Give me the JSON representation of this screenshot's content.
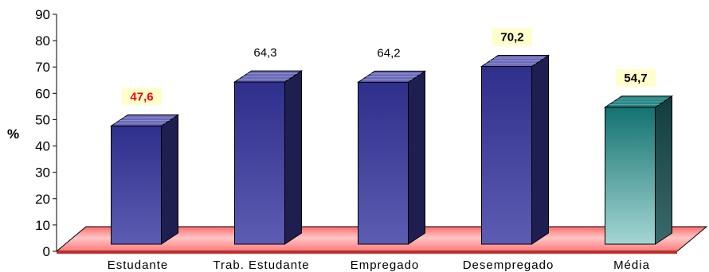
{
  "chart_data": {
    "type": "bar",
    "title": "",
    "xlabel": "",
    "ylabel": "%",
    "ylim": [
      0,
      90
    ],
    "yticks": [
      0,
      10,
      20,
      30,
      40,
      50,
      60,
      70,
      80,
      90
    ],
    "categories": [
      "Estudante",
      "Trab. Estudante",
      "Empregado",
      "Desempregado",
      "Média"
    ],
    "values": [
      47.6,
      64.3,
      64.2,
      70.2,
      54.7
    ],
    "data_labels": [
      "47,6",
      "64,3",
      "64,2",
      "70,2",
      "54,7"
    ],
    "grid": false,
    "legend": "none"
  },
  "colors": {
    "bar_front": "#3c3c9a",
    "bar_front_light": "#5a5ab0",
    "bar_side": "#1e1e50",
    "bar_top": "#6a6ab8",
    "avg_front_top": "#1e7a78",
    "avg_front_bottom": "#9ad0ce",
    "avg_side": "#1f4f50",
    "floor_fill": "#ff8080",
    "floor_light": "#ffd0d0",
    "label_highlight_bg": "#ffffcc",
    "label_red": "#ff0000",
    "label_black": "#000000"
  },
  "label_styles": [
    {
      "color": "red",
      "bold": true,
      "box": true
    },
    {
      "color": "black",
      "bold": false,
      "box": false
    },
    {
      "color": "black",
      "bold": false,
      "box": false
    },
    {
      "color": "black",
      "bold": true,
      "box": true
    },
    {
      "color": "black",
      "bold": true,
      "box": true
    }
  ]
}
